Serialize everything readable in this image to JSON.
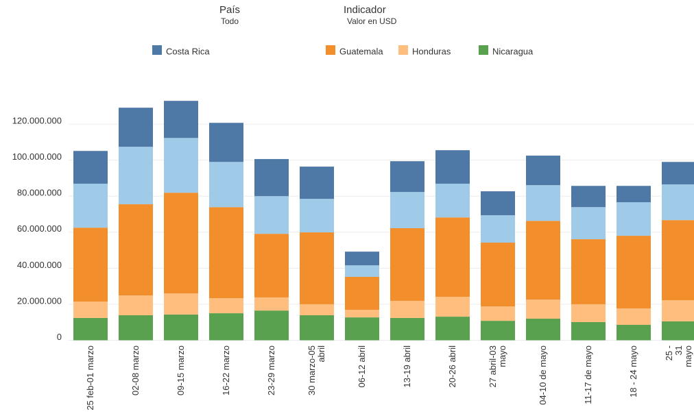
{
  "header": {
    "filters": [
      {
        "label": "País",
        "value": "Todo"
      },
      {
        "label": "Indicador",
        "value": "Valor en USD"
      }
    ]
  },
  "chart_data": {
    "type": "stacked_bar",
    "categories": [
      "25 feb-01 marzo",
      "02-08 marzo",
      "09-15 marzo",
      "16-22 marzo",
      "23-29 marzo",
      "30 marzo-05\nabril",
      "06-12 abril",
      "13-19 abril",
      "20-26 abril",
      "27  abril-03\nmayo",
      "04-10 de mayo",
      "11-17 de mayo",
      "18 - 24 mayo",
      "25 - 31 mayo"
    ],
    "series": [
      {
        "name": "Nicaragua",
        "color": "#59a14f",
        "values": [
          12400000,
          13900000,
          14300000,
          15000000,
          16500000,
          13900000,
          12700000,
          12400000,
          13100000,
          10800000,
          12000000,
          10100000,
          8600000,
          10500000
        ]
      },
      {
        "name": "Honduras",
        "color": "#ffbe7d",
        "values": [
          9100000,
          11000000,
          11700000,
          8400000,
          7300000,
          6100000,
          4200000,
          9500000,
          11000000,
          8000000,
          10600000,
          9900000,
          9100000,
          11700000
        ]
      },
      {
        "name": "Guatemala",
        "color": "#f28e2b",
        "values": [
          41000000,
          50600000,
          55900000,
          50500000,
          35300000,
          39900000,
          18300000,
          40300000,
          44100000,
          35400000,
          43700000,
          36100000,
          40300000,
          44500000
        ]
      },
      {
        "color": "#a0cbe8",
        "values": [
          24400000,
          31900000,
          30400000,
          25100000,
          20900000,
          18600000,
          6400000,
          20100000,
          18700000,
          15200000,
          19800000,
          17800000,
          18600000,
          19800000
        ]
      },
      {
        "name": "Costa Rica",
        "color": "#4e79a7",
        "values": [
          18200000,
          21700000,
          20600000,
          21700000,
          20600000,
          17900000,
          7600000,
          17100000,
          18600000,
          13300000,
          16400000,
          11800000,
          9100000,
          12500000
        ]
      }
    ],
    "legend_order": [
      4,
      2,
      1,
      0
    ],
    "ylim": [
      0,
      140000000
    ],
    "yticks": [
      0,
      {
        "value": 20000000,
        "label": "20.000.000"
      },
      {
        "value": 40000000,
        "label": "40.000.000"
      },
      {
        "value": 60000000,
        "label": "60.000.000"
      },
      {
        "value": 80000000,
        "label": "80.000.000"
      },
      {
        "value": 100000000,
        "label": "100.000.000"
      },
      {
        "value": 120000000,
        "label": "120.000.000"
      }
    ],
    "grid": true
  }
}
